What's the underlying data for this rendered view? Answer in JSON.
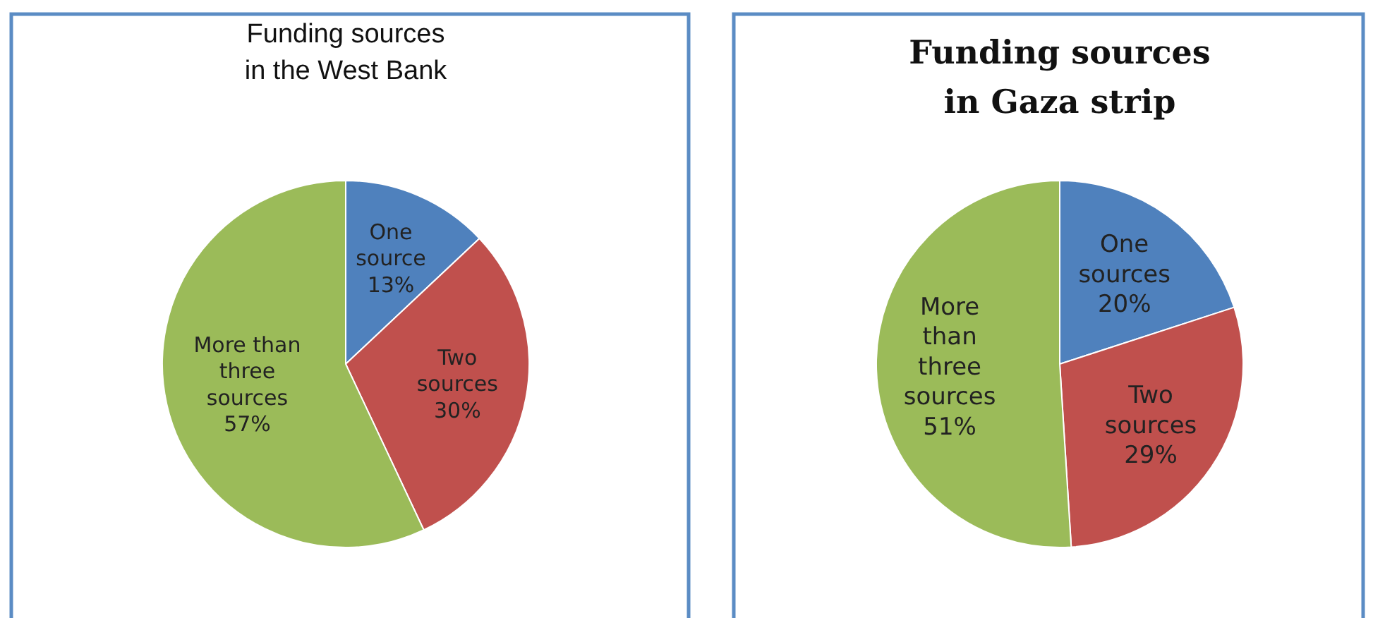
{
  "chart_data": [
    {
      "type": "pie",
      "title": "Funding sources in the West Bank",
      "categories": [
        "One source",
        "Two sources",
        "More than three sources"
      ],
      "values": [
        13,
        30,
        57
      ],
      "value_labels": [
        "13%",
        "30%",
        "57%"
      ],
      "colors": [
        "#4f81bd",
        "#c0504d",
        "#9bbb59"
      ]
    },
    {
      "type": "pie",
      "title": "Funding sources in Gaza strip",
      "categories": [
        "One sources",
        "Two sources",
        "More than three sources"
      ],
      "values": [
        20,
        29,
        51
      ],
      "value_labels": [
        "20%",
        "29%",
        "51%"
      ],
      "colors": [
        "#4f81bd",
        "#c0504d",
        "#9bbb59"
      ]
    }
  ]
}
